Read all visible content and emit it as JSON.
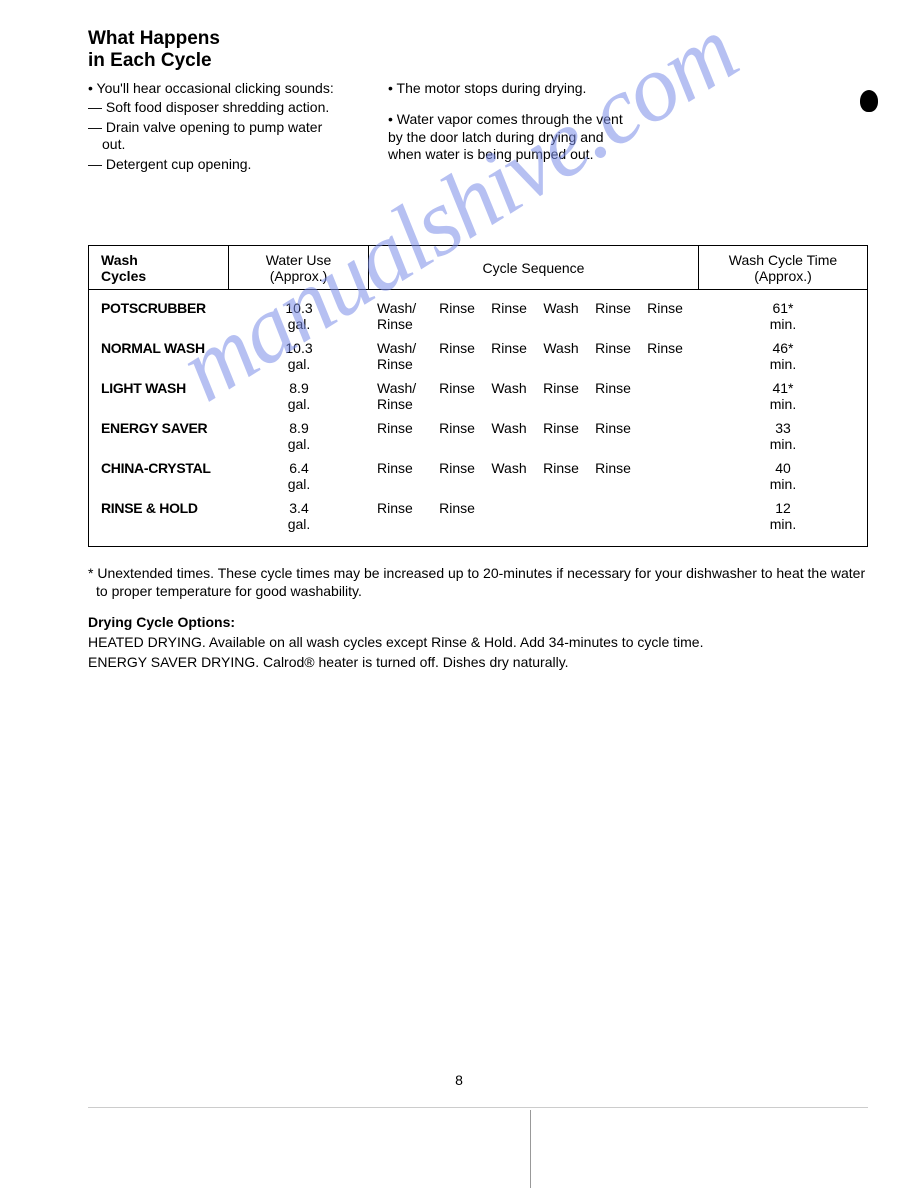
{
  "title_l1": "What Happens",
  "title_l2": "in Each Cycle",
  "col1": {
    "b1": "• You'll hear occasional clicking sounds:",
    "d1": "— Soft food disposer shredding action.",
    "d2": "— Drain valve opening to pump water out.",
    "d3": "— Detergent cup opening."
  },
  "col2": {
    "b1": "• The motor stops during drying.",
    "b2": "• Water vapor comes through the vent by the door latch during drying and when water is being pumped out."
  },
  "table": {
    "headers": {
      "h1": "Wash\nCycles",
      "h2": "Water Use\n(Approx.)",
      "h3": "Cycle Sequence",
      "h4": "Wash Cycle Time\n(Approx.)"
    },
    "rows": [
      {
        "name": "POTSCRUBBER",
        "water": "10.3\ngal.",
        "seq": [
          "Wash/\nRinse",
          "Rinse",
          "Rinse",
          "Wash",
          "Rinse",
          "Rinse"
        ],
        "time": "61*\nmin."
      },
      {
        "name": "NORMAL WASH",
        "water": "10.3\ngal.",
        "seq": [
          "Wash/\nRinse",
          "Rinse",
          "Rinse",
          "Wash",
          "Rinse",
          "Rinse"
        ],
        "time": "46*\nmin."
      },
      {
        "name": "LIGHT WASH",
        "water": "8.9\ngal.",
        "seq": [
          "Wash/\nRinse",
          "Rinse",
          "Wash",
          "Rinse",
          "Rinse",
          ""
        ],
        "time": "41*\nmin."
      },
      {
        "name": "ENERGY SAVER",
        "water": "8.9\ngal.",
        "seq": [
          "Rinse",
          "Rinse",
          "Wash",
          "Rinse",
          "Rinse",
          ""
        ],
        "time": "33\nmin."
      },
      {
        "name": "CHINA-CRYSTAL",
        "water": "6.4\ngal.",
        "seq": [
          "Rinse",
          "Rinse",
          "Wash",
          "Rinse",
          "Rinse",
          ""
        ],
        "time": "40\nmin."
      },
      {
        "name": "RINSE & HOLD",
        "water": "3.4\ngal.",
        "seq": [
          "Rinse",
          "Rinse",
          "",
          "",
          "",
          ""
        ],
        "time": "12\nmin."
      }
    ]
  },
  "footnote": "* Unextended times. These cycle times may be increased up to 20-minutes if necessary for your dishwasher to heat the water to proper temperature for good washability.",
  "dry": {
    "title": "Drying Cycle Options:",
    "l1": "HEATED DRYING. Available on all wash cycles except Rinse & Hold. Add 34-minutes to cycle time.",
    "l2": "ENERGY SAVER DRYING. Calrod® heater is turned off. Dishes dry naturally."
  },
  "watermark": "manualshive.com",
  "page_number": "8"
}
